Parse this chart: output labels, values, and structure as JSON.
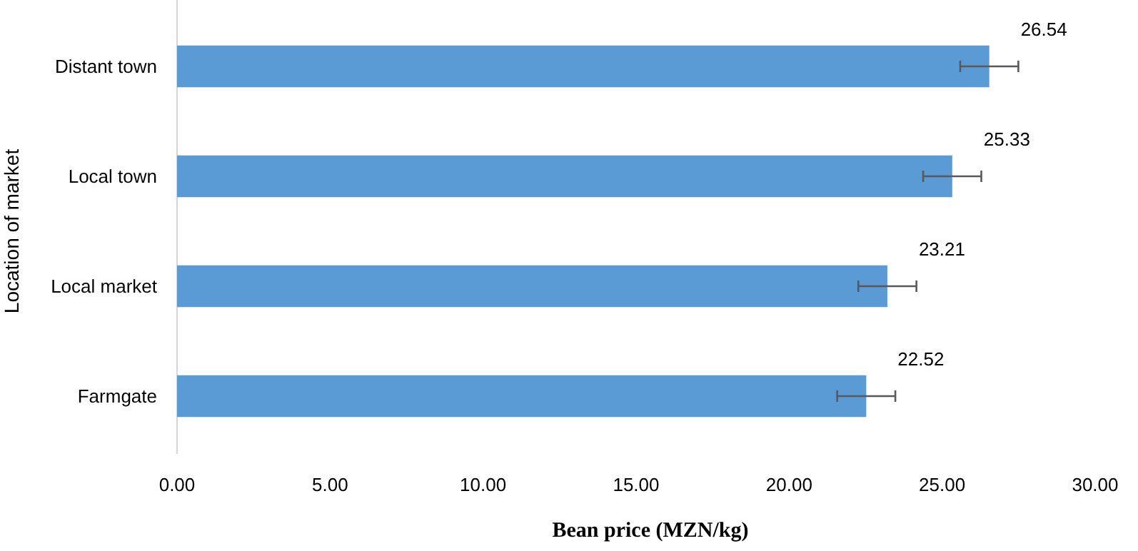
{
  "chart_data": {
    "type": "bar",
    "orientation": "horizontal",
    "xlabel": "Bean price (MZN/kg)",
    "ylabel": "Location of market",
    "categories": [
      "Distant town",
      "Local town",
      "Local market",
      "Farmgate"
    ],
    "values": [
      26.54,
      25.33,
      23.21,
      22.52
    ],
    "color": "#5b9bd5",
    "errors": [
      0.95,
      0.95,
      0.95,
      0.95
    ],
    "xlim": [
      0,
      30
    ],
    "xticks": [
      {
        "value": 0,
        "label": "0.00"
      },
      {
        "value": 5,
        "label": "5.00"
      },
      {
        "value": 10,
        "label": "10.00"
      },
      {
        "value": 15,
        "label": "15.00"
      },
      {
        "value": 20,
        "label": "20.00"
      },
      {
        "value": 25,
        "label": "25.00"
      },
      {
        "value": 30,
        "label": "30.00"
      }
    ],
    "data_labels": true,
    "grid": false
  }
}
